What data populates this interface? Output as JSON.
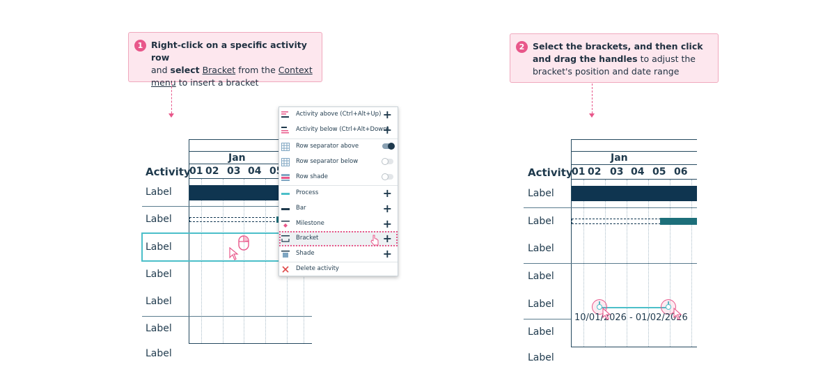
{
  "left": {
    "step_number": "1",
    "callout_parts": {
      "p1": "Right-click on a specific activity row",
      "p2": "and",
      "p3": "select",
      "p4": "Bracket",
      "p5": "from the",
      "p6": "Context menu",
      "p7": "to insert a bracket"
    },
    "gantt": {
      "month": "Jan",
      "header": "Activity",
      "days": [
        "01",
        "02",
        "03",
        "04",
        "05"
      ],
      "rows": [
        "Label",
        "Label",
        "Label",
        "Label",
        "Label",
        "Label",
        "Label"
      ]
    },
    "context_menu": {
      "items": [
        {
          "label": "Activity above (Ctrl+Alt+Up)",
          "icon": "activity-above-icon",
          "control": "plus"
        },
        {
          "label": "Activity below (Ctrl+Alt+Down)",
          "icon": "activity-below-icon",
          "control": "plus"
        },
        {
          "label": "Row separator above",
          "icon": "row-separator-above-icon",
          "control": "toggle-on"
        },
        {
          "label": "Row separator below",
          "icon": "row-separator-below-icon",
          "control": "toggle-off"
        },
        {
          "label": "Row shade",
          "icon": "row-shade-icon",
          "control": "toggle-off"
        },
        {
          "label": "Process",
          "icon": "process-icon",
          "control": "plus"
        },
        {
          "label": "Bar",
          "icon": "bar-icon",
          "control": "plus"
        },
        {
          "label": "Milestone",
          "icon": "milestone-icon",
          "control": "plus"
        },
        {
          "label": "Bracket",
          "icon": "bracket-icon",
          "control": "plus"
        },
        {
          "label": "Shade",
          "icon": "shade-icon",
          "control": "plus"
        },
        {
          "label": "Delete activity",
          "icon": "delete-icon",
          "control": "none"
        }
      ],
      "plus_glyph": "+"
    }
  },
  "right": {
    "step_number": "2",
    "callout_parts": {
      "p1": "Select the brackets, and then click and drag the handles",
      "p2": "to adjust the bracket's position and date range"
    },
    "gantt": {
      "month": "Jan",
      "header": "Activity",
      "days": [
        "01",
        "02",
        "03",
        "04",
        "05",
        "06"
      ],
      "rows": [
        "Label",
        "Label",
        "Label",
        "Label",
        "Label",
        "Label",
        "Label"
      ]
    },
    "bracket_label": "10/01/2026 - 01/02/2026"
  },
  "colors": {
    "accent_pink": "#e8578a",
    "callout_bg": "#fde7ee",
    "navy": "#0f3550",
    "teal": "#1d6f7a",
    "selection": "#4bbfc9"
  }
}
